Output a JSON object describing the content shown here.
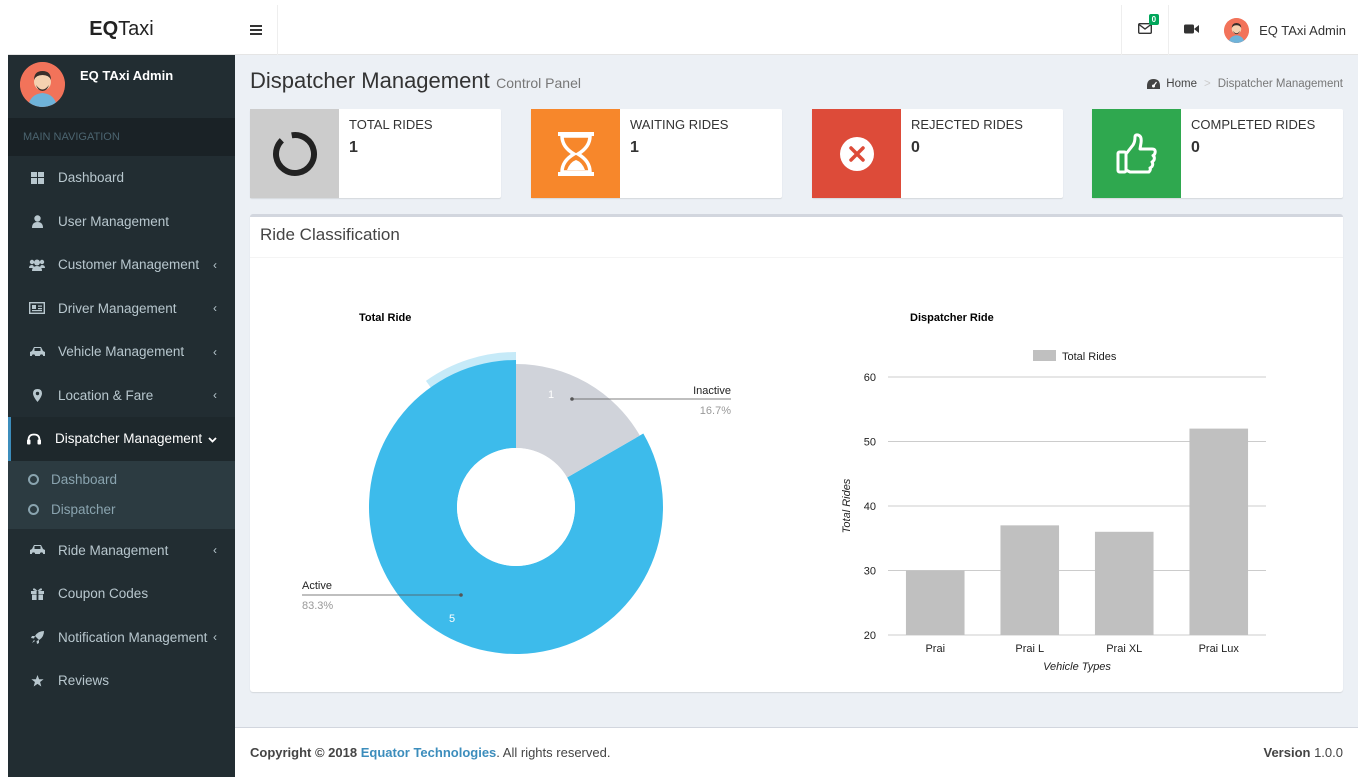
{
  "app": {
    "logo_bold": "EQ",
    "logo_rest": "Taxi"
  },
  "user": {
    "name": "EQ TAxi Admin"
  },
  "sidebar": {
    "header": "MAIN NAVIGATION",
    "items": [
      {
        "label": "Dashboard",
        "icon": "dashboard-icon"
      },
      {
        "label": "User Management",
        "icon": "user-icon"
      },
      {
        "label": "Customer Management",
        "icon": "users-icon"
      },
      {
        "label": "Driver Management",
        "icon": "id-card-icon"
      },
      {
        "label": "Vehicle Management",
        "icon": "car-icon"
      },
      {
        "label": "Location & Fare",
        "icon": "map-marker-icon"
      },
      {
        "label": "Dispatcher Management",
        "icon": "headphones-icon"
      },
      {
        "label": "Ride Management",
        "icon": "car-icon"
      },
      {
        "label": "Coupon Codes",
        "icon": "gift-icon"
      },
      {
        "label": "Notification Management",
        "icon": "rocket-icon"
      },
      {
        "label": "Reviews",
        "icon": "star-icon"
      }
    ],
    "submenu": [
      {
        "label": "Dashboard"
      },
      {
        "label": "Dispatcher"
      }
    ]
  },
  "topbar": {
    "mail_badge": "0"
  },
  "page": {
    "title": "Dispatcher Management",
    "subtitle": "Control Panel"
  },
  "breadcrumb": {
    "home": "Home",
    "current": "Dispatcher Management"
  },
  "stats": [
    {
      "label": "TOTAL RIDES",
      "value": "1",
      "color": "#cccccc"
    },
    {
      "label": "WAITING RIDES",
      "value": "1",
      "color": "#f7872b"
    },
    {
      "label": "REJECTED RIDES",
      "value": "0",
      "color": "#dd4b39"
    },
    {
      "label": "COMPLETED RIDES",
      "value": "0",
      "color": "#2fa84f"
    }
  ],
  "box": {
    "title": "Ride Classification"
  },
  "chart_data": [
    {
      "type": "pie",
      "title": "Total Ride",
      "slices": [
        {
          "name": "Inactive",
          "value": 1,
          "percent": "16.7%",
          "color": "#d0d3da"
        },
        {
          "name": "Active",
          "value": 5,
          "percent": "83.3%",
          "color": "#3dbbeb"
        }
      ]
    },
    {
      "type": "bar",
      "title": "Dispatcher Ride",
      "categories": [
        "Prai",
        "Prai L",
        "Prai XL",
        "Prai Lux"
      ],
      "series": [
        {
          "name": "Total Rides",
          "values": [
            30,
            37,
            36,
            52
          ],
          "color": "#c0c0c0"
        }
      ],
      "xlabel": "Vehicle Types",
      "ylabel": "Total Rides",
      "ylim": [
        20,
        60
      ],
      "yticks": [
        "20",
        "30",
        "40",
        "50",
        "60"
      ],
      "grid": true,
      "legend": "top"
    }
  ],
  "footer": {
    "copyright": "Copyright © 2018",
    "company": "Equator Technologies",
    "rights": ". All rights reserved.",
    "version_label": "Version",
    "version": "1.0.0"
  }
}
